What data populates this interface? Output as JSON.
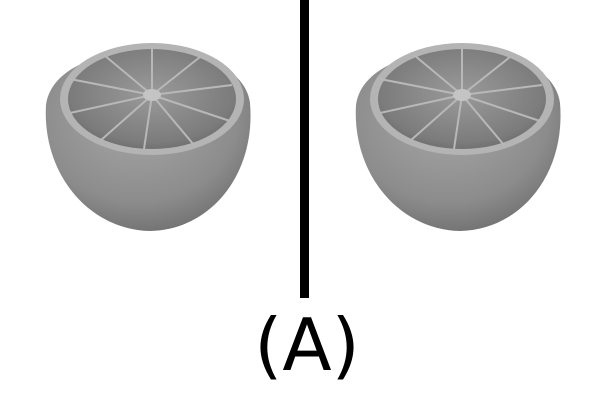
{
  "label": "(A)"
}
